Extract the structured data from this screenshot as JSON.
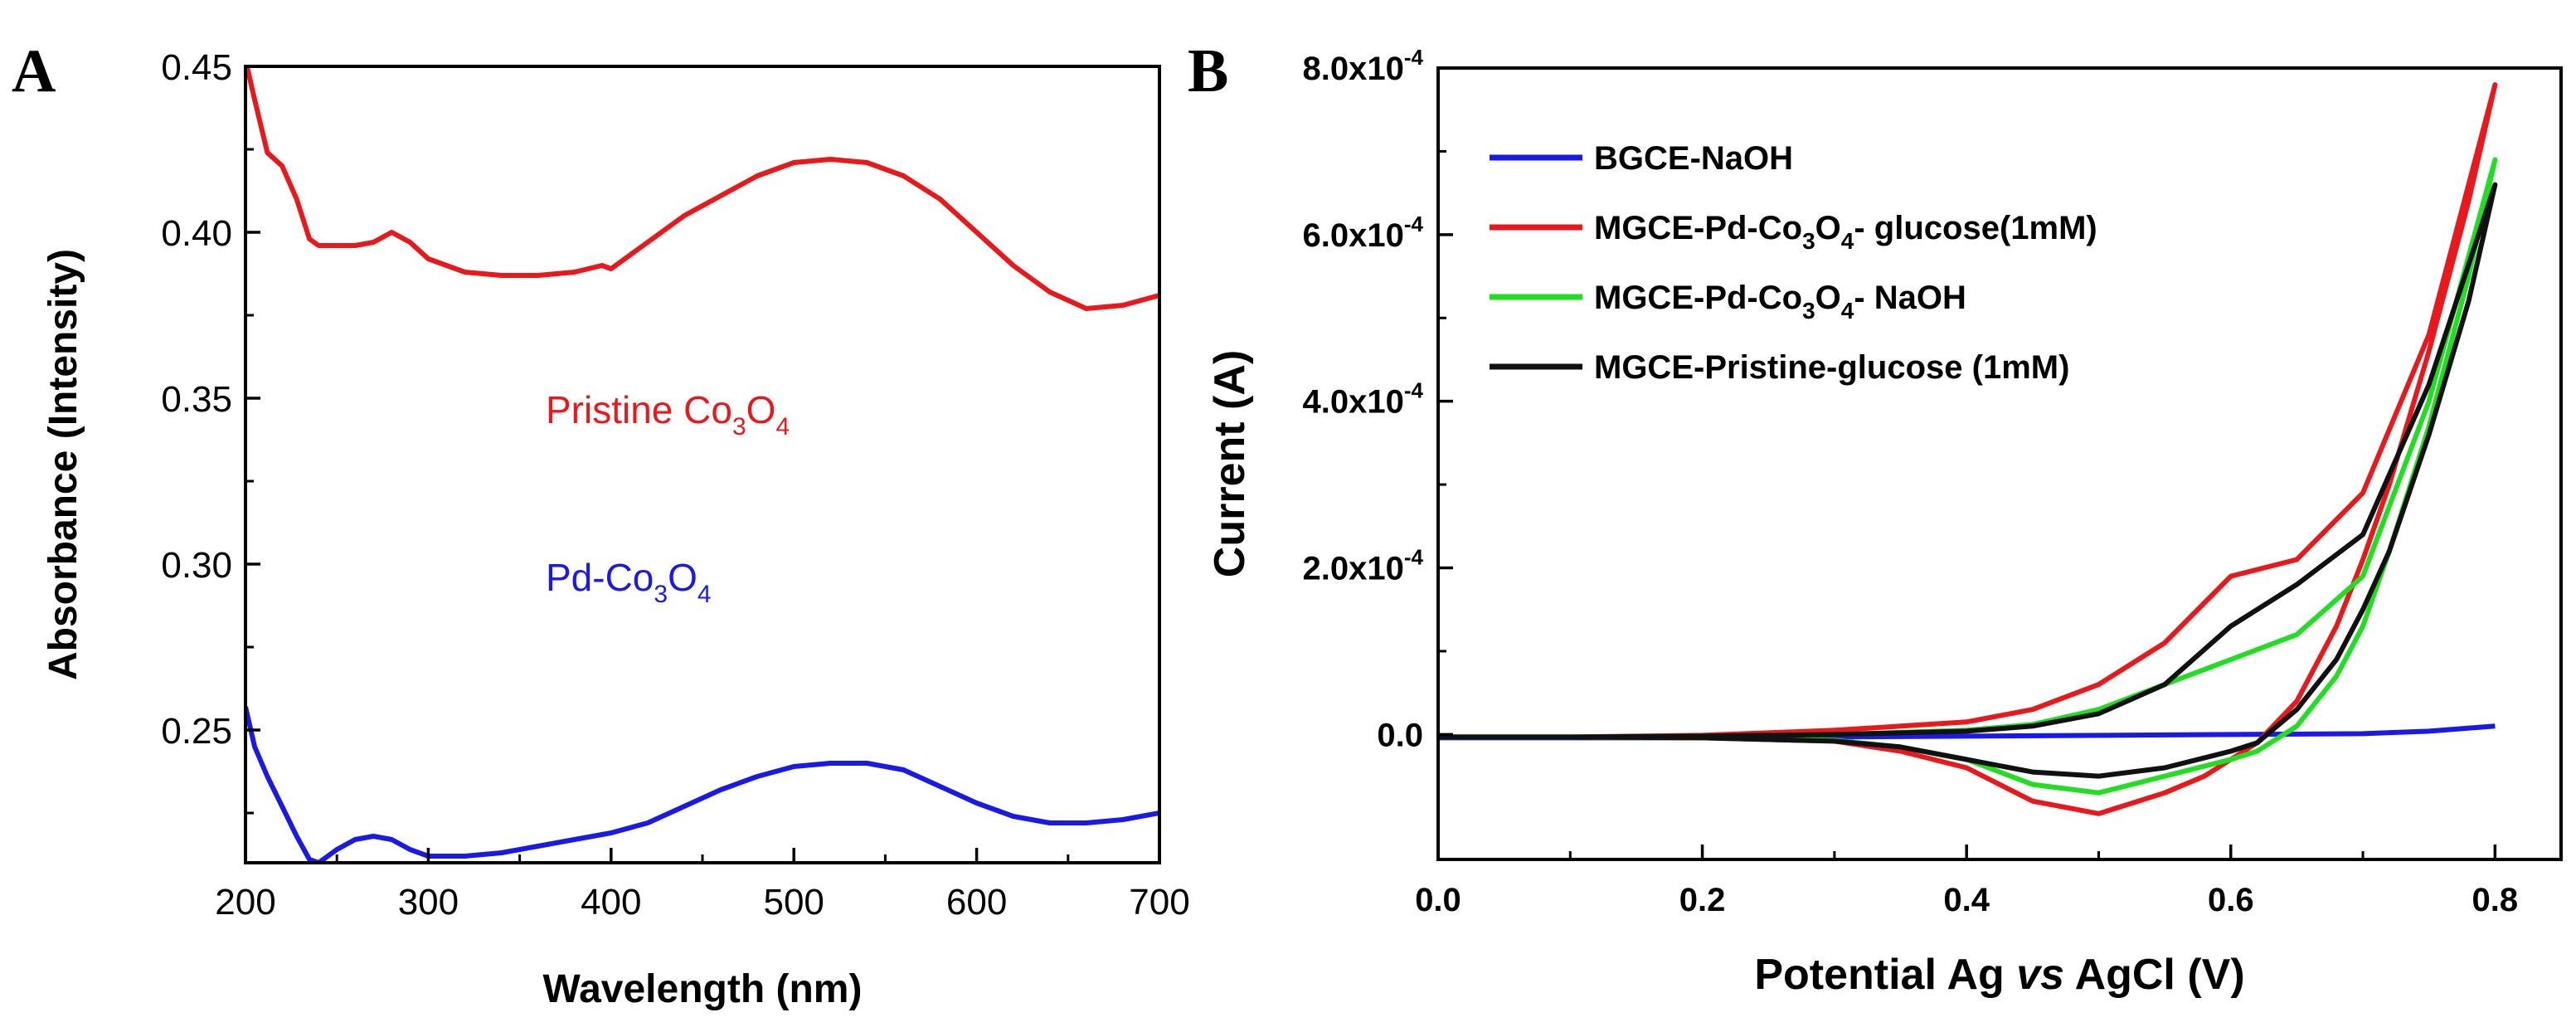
{
  "chart_data": [
    {
      "panel_label": "A",
      "type": "line",
      "xlabel": "Wavelength (nm)",
      "ylabel": "Absorbance (Intensity)",
      "xlim": [
        200,
        700
      ],
      "ylim": [
        0.21,
        0.45
      ],
      "x_ticks": [
        200,
        300,
        400,
        500,
        600,
        700
      ],
      "x_tick_labels": [
        "200",
        "300",
        "400",
        "500",
        "600",
        "700"
      ],
      "y_ticks": [
        0.25,
        0.3,
        0.35,
        0.4,
        0.45
      ],
      "y_tick_labels": [
        "0.25",
        "0.30",
        "0.35",
        "0.40",
        "0.45"
      ],
      "grid": false,
      "annotations": [
        {
          "series_index": 0,
          "label_main": "Pristine Co",
          "sub1": "3",
          "mid": "O",
          "sub2": "4",
          "color": "#e8191c"
        },
        {
          "series_index": 1,
          "label_main": "Pd-Co",
          "sub1": "3",
          "mid": "O",
          "sub2": "4",
          "color": "#1a1ae6"
        }
      ],
      "series": [
        {
          "color": "#e8191c",
          "x": [
            200,
            205,
            212,
            220,
            228,
            235,
            240,
            250,
            260,
            270,
            280,
            290,
            300,
            320,
            340,
            360,
            380,
            395,
            400,
            420,
            440,
            460,
            480,
            500,
            520,
            540,
            560,
            580,
            600,
            620,
            640,
            660,
            680,
            700
          ],
          "y": [
            0.452,
            0.44,
            0.424,
            0.42,
            0.41,
            0.398,
            0.396,
            0.396,
            0.396,
            0.397,
            0.4,
            0.397,
            0.392,
            0.388,
            0.387,
            0.387,
            0.388,
            0.39,
            0.389,
            0.397,
            0.405,
            0.411,
            0.417,
            0.421,
            0.422,
            0.421,
            0.417,
            0.41,
            0.4,
            0.39,
            0.382,
            0.377,
            0.378,
            0.381
          ]
        },
        {
          "color": "#1a1ae6",
          "x": [
            200,
            205,
            212,
            220,
            228,
            235,
            240,
            250,
            260,
            270,
            280,
            290,
            300,
            320,
            340,
            360,
            380,
            400,
            420,
            440,
            460,
            480,
            500,
            520,
            540,
            560,
            580,
            600,
            620,
            640,
            660,
            680,
            700
          ],
          "y": [
            0.257,
            0.245,
            0.236,
            0.227,
            0.218,
            0.211,
            0.21,
            0.214,
            0.217,
            0.218,
            0.217,
            0.214,
            0.212,
            0.212,
            0.213,
            0.215,
            0.217,
            0.219,
            0.222,
            0.227,
            0.232,
            0.236,
            0.239,
            0.24,
            0.24,
            0.238,
            0.233,
            0.228,
            0.224,
            0.222,
            0.222,
            0.223,
            0.225
          ]
        }
      ]
    },
    {
      "panel_label": "B",
      "type": "line",
      "xlabel_pre": "Potential Ag ",
      "xlabel_italic": "vs",
      "xlabel_post": " AgCl (V)",
      "ylabel": "Current (A)",
      "xlim": [
        0.0,
        0.85
      ],
      "ylim": [
        -0.00015,
        0.0008
      ],
      "x_ticks": [
        0.0,
        0.2,
        0.4,
        0.6,
        0.8
      ],
      "x_tick_labels": [
        "0.0",
        "0.2",
        "0.4",
        "0.6",
        "0.8"
      ],
      "y_ticks": [
        0.0,
        0.0002,
        0.0004,
        0.0006,
        0.0008
      ],
      "y_tick_labels": [
        {
          "mant": "0.0",
          "exp": ""
        },
        {
          "mant": "2.0x10",
          "exp": "-4"
        },
        {
          "mant": "4.0x10",
          "exp": "-4"
        },
        {
          "mant": "6.0x10",
          "exp": "-4"
        },
        {
          "mant": "8.0x10",
          "exp": "-4"
        }
      ],
      "grid": false,
      "legend_position": "top-left",
      "series": [
        {
          "legend": [
            {
              "t": "BGCE-NaOH"
            }
          ],
          "color": "#1a1ae6",
          "x": [
            0.0,
            0.2,
            0.4,
            0.6,
            0.7,
            0.75,
            0.8
          ],
          "y": [
            -4e-06,
            -4e-06,
            -2e-06,
            0.0,
            1e-06,
            4e-06,
            1e-05
          ]
        },
        {
          "legend": [
            {
              "t": "MGCE-Pd-Co"
            },
            {
              "t": "3",
              "sub": true
            },
            {
              "t": "O"
            },
            {
              "t": "4",
              "sub": true
            },
            {
              "t": "- glucose(1mM)"
            }
          ],
          "color": "#e8191c",
          "x": [
            0.0,
            0.1,
            0.2,
            0.3,
            0.4,
            0.45,
            0.5,
            0.55,
            0.6,
            0.65,
            0.7,
            0.75,
            0.8,
            0.8,
            0.78,
            0.75,
            0.72,
            0.7,
            0.68,
            0.65,
            0.62,
            0.6,
            0.58,
            0.55,
            0.5,
            0.45,
            0.4,
            0.35,
            0.3,
            0.2,
            0.1,
            0.0
          ],
          "y": [
            -3e-06,
            -3e-06,
            -1e-06,
            5e-06,
            1.5e-05,
            3e-05,
            6e-05,
            0.00011,
            0.00019,
            0.00021,
            0.00029,
            0.00048,
            0.00078,
            0.00078,
            0.00064,
            0.00046,
            0.0003,
            0.00021,
            0.00013,
            4e-05,
            -1e-05,
            -3e-05,
            -5e-05,
            -7e-05,
            -9.5e-05,
            -8e-05,
            -4e-05,
            -2e-05,
            -8e-06,
            -4e-06,
            -3e-06,
            -3e-06
          ]
        },
        {
          "legend": [
            {
              "t": "MGCE-Pd-Co"
            },
            {
              "t": "3",
              "sub": true
            },
            {
              "t": "O"
            },
            {
              "t": "4",
              "sub": true
            },
            {
              "t": "- NaOH"
            }
          ],
          "color": "#22dd22",
          "x": [
            0.0,
            0.1,
            0.2,
            0.3,
            0.4,
            0.45,
            0.5,
            0.55,
            0.6,
            0.65,
            0.7,
            0.75,
            0.8,
            0.8,
            0.78,
            0.75,
            0.72,
            0.7,
            0.68,
            0.65,
            0.62,
            0.6,
            0.55,
            0.5,
            0.45,
            0.4,
            0.35,
            0.3,
            0.2,
            0.1,
            0.0
          ],
          "y": [
            -3e-06,
            -3e-06,
            -2e-06,
            0.0,
            5e-06,
            1.2e-05,
            3e-05,
            6e-05,
            9e-05,
            0.00012,
            0.00019,
            0.0004,
            0.00069,
            0.00069,
            0.00055,
            0.00037,
            0.00022,
            0.00013,
            7e-05,
            1e-05,
            -2e-05,
            -3e-05,
            -5e-05,
            -7e-05,
            -6e-05,
            -3e-05,
            -1.5e-05,
            -7e-06,
            -4e-06,
            -3e-06,
            -3e-06
          ]
        },
        {
          "legend": [
            {
              "t": "MGCE-Pristine-glucose (1mM)"
            }
          ],
          "color": "#111111",
          "x": [
            0.0,
            0.1,
            0.2,
            0.3,
            0.4,
            0.45,
            0.5,
            0.55,
            0.6,
            0.65,
            0.7,
            0.75,
            0.8,
            0.8,
            0.78,
            0.75,
            0.72,
            0.7,
            0.68,
            0.65,
            0.62,
            0.6,
            0.55,
            0.5,
            0.45,
            0.4,
            0.35,
            0.3,
            0.2,
            0.1,
            0.0
          ],
          "y": [
            -3e-06,
            -3e-06,
            -2e-06,
            0.0,
            4e-06,
            1e-05,
            2.5e-05,
            6e-05,
            0.00013,
            0.00018,
            0.00024,
            0.00042,
            0.00066,
            0.00066,
            0.00052,
            0.00036,
            0.00022,
            0.00015,
            9e-05,
            3e-05,
            -1e-05,
            -2e-05,
            -4e-05,
            -5e-05,
            -4.5e-05,
            -3e-05,
            -1.5e-05,
            -8e-06,
            -4e-06,
            -3e-06,
            -3e-06
          ]
        }
      ]
    }
  ]
}
